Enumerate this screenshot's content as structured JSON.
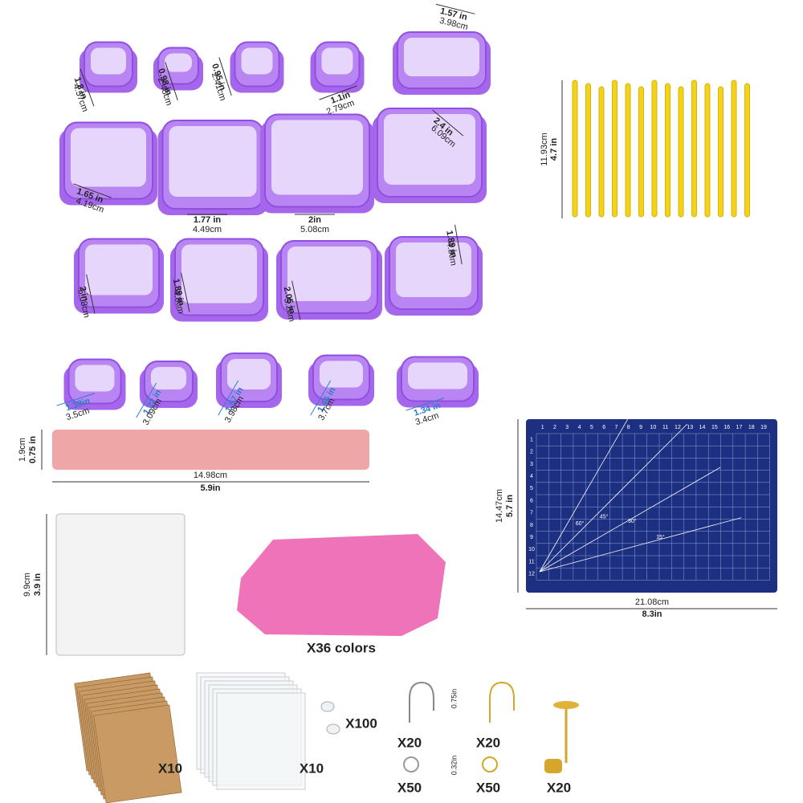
{
  "cutters": [
    {
      "inch": "1.8 in",
      "cm": "4.57cm"
    },
    {
      "inch": "0.98 in",
      "cm": "2.48cm"
    },
    {
      "inch": "0.95 in",
      "cm": "2.41cm"
    },
    {
      "inch": "1.1in",
      "cm": "2.79cm"
    },
    {
      "inch": "1.57 in",
      "cm": "3.98cm"
    },
    {
      "inch": "1.65 in",
      "cm": "4.19cm"
    },
    {
      "inch": "1.77 in",
      "cm": "4.49cm"
    },
    {
      "inch": "2in",
      "cm": "5.08cm"
    },
    {
      "inch": "2.4 in",
      "cm": "6.09cm"
    },
    {
      "inch": "2 in",
      "cm": "5.08cm"
    },
    {
      "inch": "1.89 in",
      "cm": "4.8cm"
    },
    {
      "inch": "2.05 in",
      "cm": "5.2cm"
    },
    {
      "inch": "1.89 in",
      "cm": "4.8cm"
    },
    {
      "inch": "1.38in",
      "cm": "3.5cm"
    },
    {
      "inch": "1.22 in",
      "cm": "3.09cm"
    },
    {
      "inch": "1.57 in",
      "cm": "3.98cm"
    },
    {
      "inch": "1.46 in",
      "cm": "3.7cm"
    },
    {
      "inch": "1.34 in",
      "cm": "3.4cm"
    }
  ],
  "roller": {
    "diameter_cm": "1.9cm",
    "diameter_in": "0.75 in",
    "length_cm": "14.98cm",
    "length_in": "5.9in"
  },
  "tools": {
    "cm": "11.93cm",
    "in": "4.7 in"
  },
  "acrylic": {
    "cm": "9.9cm",
    "in": "3.9 in"
  },
  "clay": {
    "label": "X36 colors"
  },
  "mat": {
    "height_cm": "14.47cm",
    "height_in": "5.7 in",
    "width_cm": "21.08cm",
    "width_in": "8.3in",
    "ruler_top": [
      1,
      2,
      3,
      4,
      5,
      6,
      7,
      8,
      9,
      10,
      11,
      12,
      13,
      14,
      15,
      16,
      17,
      18,
      19
    ],
    "ruler_side": [
      1,
      2,
      3,
      4,
      5,
      6,
      7,
      8,
      9,
      10,
      11,
      12
    ],
    "angles": [
      "60°",
      "45°",
      "30°",
      "15°"
    ]
  },
  "accessories": {
    "cards": "X10",
    "bags": "X10",
    "backs": "X100",
    "hooks_silver": "X20",
    "hooks_gold": "X20",
    "hook_size": "0.75in",
    "rings_silver": "X50",
    "rings_gold": "X50",
    "ring_size": "0.32in",
    "studs": "X20"
  }
}
